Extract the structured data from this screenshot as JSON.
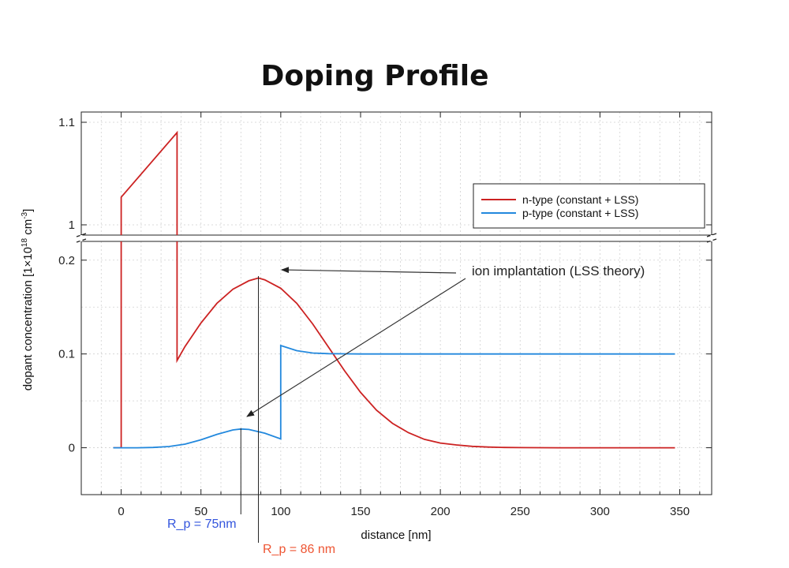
{
  "chart_data": {
    "type": "line",
    "title": "Doping Profile",
    "xlabel": "distance [nm]",
    "ylabel": "dopant concentration [1×10",
    "ylabel_exp": "18",
    "ylabel_unit": " cm",
    "ylabel_unit_exp": "-3",
    "ylabel_close": "]",
    "xlim": [
      -25,
      370
    ],
    "xticks": [
      0,
      50,
      100,
      150,
      200,
      250,
      300,
      350
    ],
    "xtick_labels": [
      "0",
      "50",
      "100",
      "150",
      "200",
      "250",
      "300",
      "350"
    ],
    "y_lower": {
      "ylim": [
        -0.05,
        0.22
      ],
      "ticks": [
        0,
        0.1,
        0.2
      ],
      "tick_labels": [
        "0",
        "0.1",
        "0.2"
      ]
    },
    "y_upper": {
      "ylim": [
        0.99,
        1.11
      ],
      "ticks": [
        1,
        1.1
      ],
      "tick_labels": [
        "1",
        "1.1"
      ]
    },
    "axis_break": true,
    "grid": true,
    "legend_position": "right, below upper panel top",
    "series": [
      {
        "name": "n-type (constant + LSS)",
        "color": "#cc2222",
        "x": [
          -5,
          -1,
          0,
          0,
          35,
          35,
          40,
          50,
          60,
          70,
          80,
          86,
          90,
          100,
          110,
          120,
          130,
          140,
          150,
          160,
          170,
          180,
          190,
          200,
          210,
          220,
          230,
          240,
          250,
          275,
          300,
          347
        ],
        "y": [
          0,
          0,
          0,
          1.027,
          1.09,
          0.093,
          0.108,
          0.133,
          0.154,
          0.169,
          0.178,
          0.181,
          0.179,
          0.17,
          0.154,
          0.132,
          0.107,
          0.082,
          0.059,
          0.04,
          0.026,
          0.016,
          0.009,
          0.005,
          0.003,
          0.0015,
          0.0007,
          0.0003,
          0.0001,
          0,
          0,
          0
        ]
      },
      {
        "name": "p-type (constant + LSS)",
        "color": "#2288dd",
        "x": [
          -5,
          0,
          10,
          20,
          30,
          40,
          50,
          60,
          70,
          75,
          80,
          90,
          100,
          100,
          110,
          120,
          130,
          140,
          150,
          200,
          250,
          300,
          347
        ],
        "y": [
          0,
          0,
          0,
          0.0003,
          0.0013,
          0.0038,
          0.0085,
          0.0143,
          0.019,
          0.02,
          0.0195,
          0.0155,
          0.0095,
          0.109,
          0.1035,
          0.101,
          0.1003,
          0.1001,
          0.1,
          0.1,
          0.1,
          0.1,
          0.1
        ]
      }
    ],
    "annotations": {
      "ion_text": "ion implantation (LSS theory)",
      "rp_p_label": "R_p = 75nm",
      "rp_p_value": 75,
      "rp_n_label": "R_p = 86 nm",
      "rp_n_value": 86
    }
  }
}
